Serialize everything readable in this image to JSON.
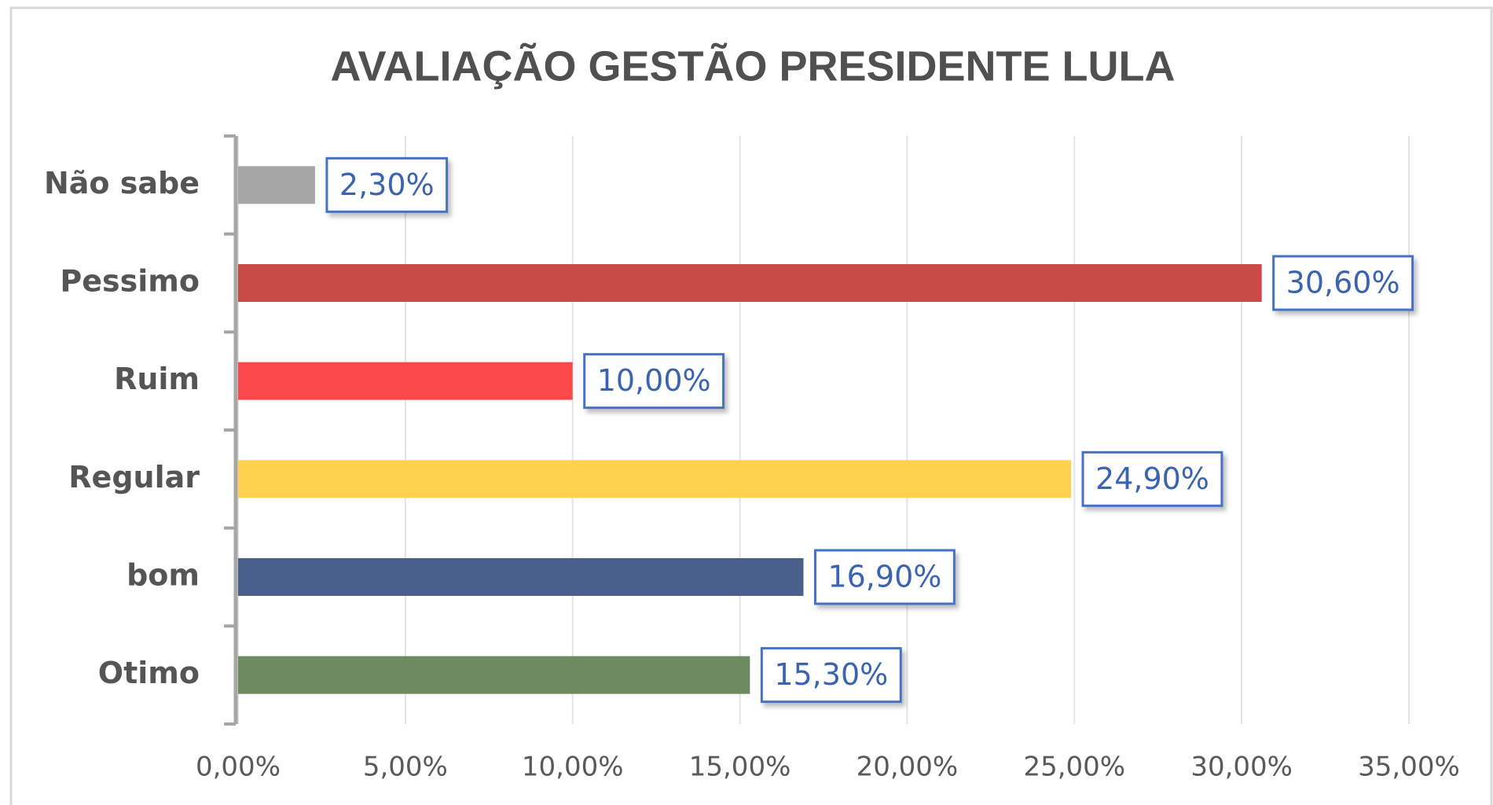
{
  "chart_data": {
    "type": "bar",
    "orientation": "horizontal",
    "title": "AVALIAÇÃO GESTÃO PRESIDENTE LULA",
    "categories": [
      "Não sabe",
      "Pessimo",
      "Ruim",
      "Regular",
      "bom",
      "Otimo"
    ],
    "values": [
      2.3,
      30.6,
      10,
      24.9,
      16.9,
      15.3
    ],
    "value_labels": [
      "2,30%",
      "30,60%",
      "10,00%",
      "24,90%",
      "16,90%",
      "15,30%"
    ],
    "colors": [
      "#a5a5a5",
      "#c94a48",
      "#fc4848",
      "#fdd14e",
      "#4a5f8c",
      "#6e8a60"
    ],
    "xlim": [
      0,
      35
    ],
    "xticks": [
      {
        "value": 0,
        "label": "0,00%"
      },
      {
        "value": 5,
        "label": "5,00%"
      },
      {
        "value": 10,
        "label": "10,00%"
      },
      {
        "value": 15,
        "label": "15,00%"
      },
      {
        "value": 20,
        "label": "20,00%"
      },
      {
        "value": 25,
        "label": "25,00%"
      },
      {
        "value": 30,
        "label": "30,00%"
      },
      {
        "value": 35,
        "label": "35,00%"
      }
    ],
    "grid": true
  }
}
